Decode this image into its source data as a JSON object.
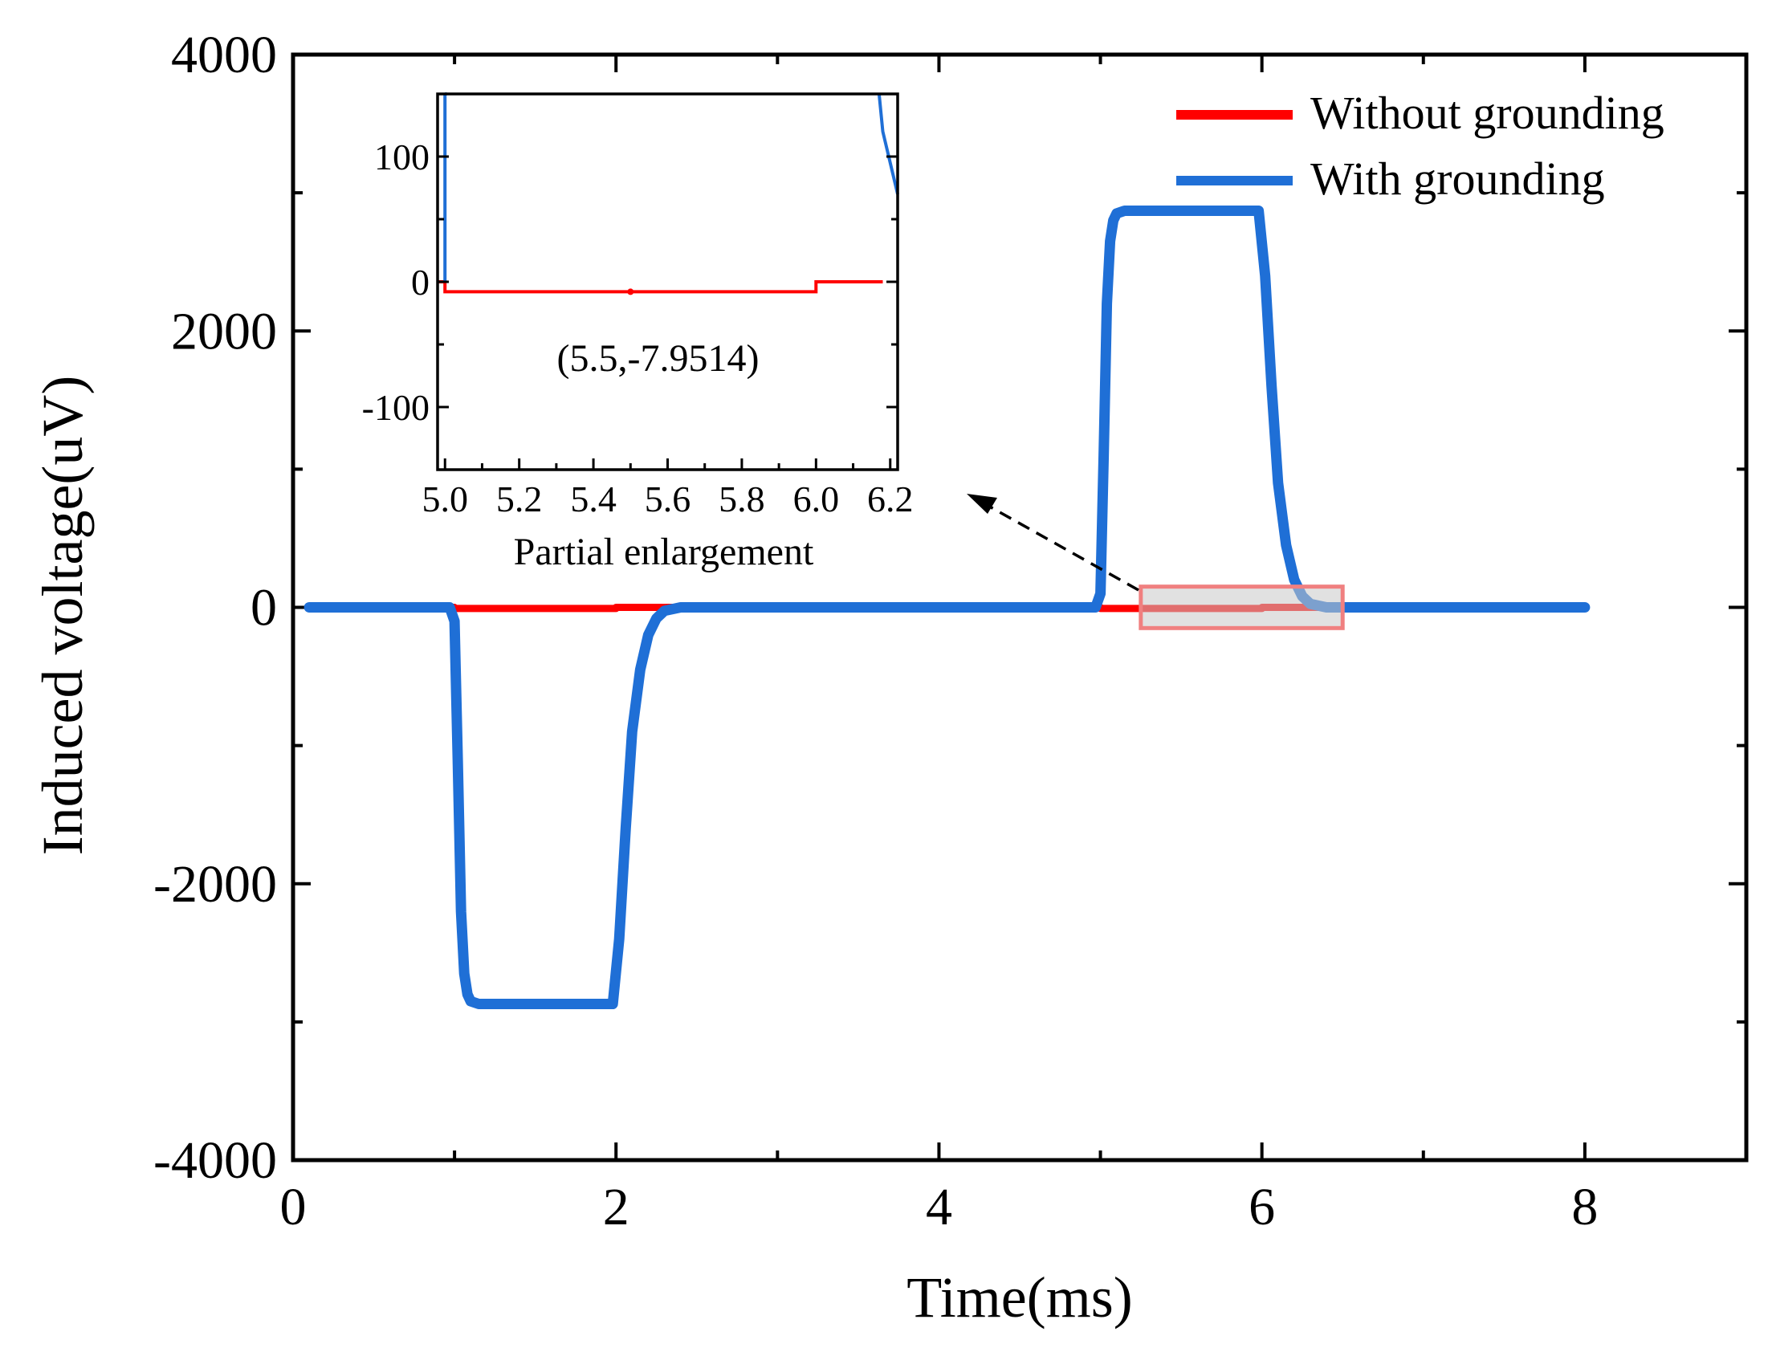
{
  "chart_data": [
    {
      "type": "line",
      "xlabel": "Time(ms)",
      "ylabel": "Induced voltage(uV)",
      "xlim": [
        0,
        9
      ],
      "ylim": [
        -4000,
        4000
      ],
      "xticks": [
        0,
        2,
        4,
        6,
        8
      ],
      "xtick_labels": [
        "0",
        "2",
        "4",
        "6",
        "8"
      ],
      "yticks": [
        -4000,
        -2000,
        0,
        2000,
        4000
      ],
      "ytick_labels": [
        "-4000",
        "-2000",
        "0",
        "2000",
        "4000"
      ],
      "legend_position": "top-right",
      "series": [
        {
          "name": "Without grounding",
          "color": "#ff0000",
          "x": [
            0.1,
            1.0,
            1.0,
            2.0,
            2.0,
            5.0,
            5.0,
            6.0,
            6.0,
            8.0
          ],
          "y": [
            0,
            0,
            -8,
            -8,
            0,
            0,
            -8,
            -8,
            0,
            0
          ]
        },
        {
          "name": "With grounding",
          "color": "#1f6fd6",
          "x": [
            0.1,
            0.97,
            1.0,
            1.02,
            1.04,
            1.06,
            1.08,
            1.1,
            1.15,
            1.95,
            1.98,
            2.02,
            2.06,
            2.1,
            2.15,
            2.2,
            2.25,
            2.3,
            2.4,
            4.97,
            5.0,
            5.02,
            5.04,
            5.06,
            5.08,
            5.1,
            5.15,
            5.95,
            5.98,
            6.02,
            6.06,
            6.1,
            6.15,
            6.2,
            6.25,
            6.3,
            6.4,
            8.0
          ],
          "y": [
            0,
            0,
            -100,
            -1100,
            -2200,
            -2650,
            -2800,
            -2850,
            -2870,
            -2870,
            -2870,
            -2400,
            -1600,
            -900,
            -450,
            -200,
            -80,
            -25,
            0,
            0,
            100,
            1100,
            2200,
            2650,
            2800,
            2850,
            2870,
            2870,
            2870,
            2400,
            1600,
            900,
            450,
            200,
            80,
            25,
            0,
            0
          ]
        }
      ],
      "highlight_box": {
        "x": [
          5.25,
          6.5
        ],
        "y": [
          -150,
          150
        ],
        "color": "#f08080"
      }
    },
    {
      "type": "line",
      "title": "Partial enlargement",
      "xlim": [
        4.98,
        6.22
      ],
      "ylim": [
        -150,
        150
      ],
      "xticks": [
        5.0,
        5.2,
        5.4,
        5.6,
        5.8,
        6.0,
        6.2
      ],
      "xtick_labels": [
        "5.0",
        "5.2",
        "5.4",
        "5.6",
        "5.8",
        "6.0",
        "6.2"
      ],
      "yticks": [
        -100,
        0,
        100
      ],
      "ytick_labels": [
        "-100",
        "0",
        "100"
      ],
      "annotation": "(5.5,-7.9514)",
      "annotation_point": [
        5.5,
        -7.9514
      ],
      "series": [
        {
          "name": "Without grounding",
          "color": "#ff0000",
          "x": [
            4.98,
            5.0,
            5.0,
            6.0,
            6.0,
            6.18
          ],
          "y": [
            0,
            0,
            -7.9514,
            -7.9514,
            0,
            0
          ]
        },
        {
          "name": "With grounding",
          "color": "#1f6fd6",
          "x": [
            5.0,
            5.0,
            5.005,
            5.005
          ],
          "y": [
            150,
            150,
            150,
            150
          ]
        },
        {
          "name": "With grounding tail",
          "color": "#1f6fd6",
          "x": [
            6.17,
            6.18,
            6.22
          ],
          "y": [
            150,
            120,
            70
          ]
        },
        {
          "name": "With grounding rise",
          "color": "#1f6fd6",
          "x": [
            5.0,
            5.0
          ],
          "y": [
            0,
            150
          ]
        }
      ]
    }
  ]
}
